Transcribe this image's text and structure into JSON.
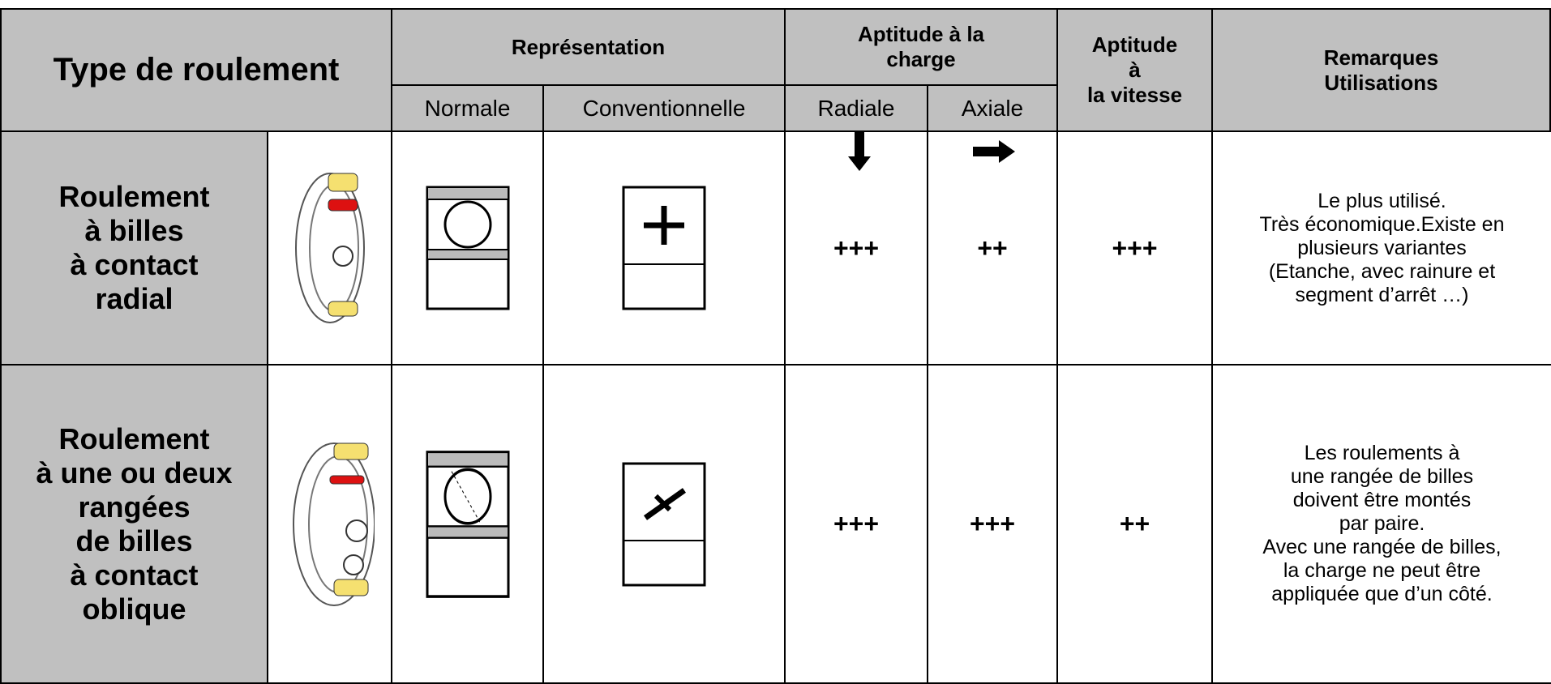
{
  "header": {
    "type": "Type  de roulement",
    "representation": "Représentation",
    "normale": "Normale",
    "conventionnelle": "Conventionnelle",
    "charge": [
      "Aptitude à la",
      "charge"
    ],
    "radiale": "Radiale",
    "axiale": "Axiale",
    "vitesse": [
      "Aptitude",
      "à",
      "la vitesse"
    ],
    "remarques": [
      "Remarques",
      "Utilisations"
    ]
  },
  "rows": [
    {
      "name": [
        "Roulement",
        "à billes",
        "à contact",
        "radial"
      ],
      "radiale": "+++",
      "axiale": "++",
      "vitesse": "+++",
      "remarques": [
        "Le plus utilisé.",
        "Très économique.Existe en",
        "plusieurs variantes",
        "(Etanche, avec rainure et",
        "segment d’arrêt …)"
      ]
    },
    {
      "name": [
        "Roulement",
        "à une ou deux",
        "rangées",
        "de billes",
        "à contact",
        "oblique"
      ],
      "radiale": "+++",
      "axiale": "+++",
      "vitesse": "++",
      "remarques": [
        "Les roulements à",
        "une rangée de billes",
        "doivent être montés",
        "par paire.",
        "Avec une rangée de billes,",
        "la charge ne peut être",
        "appliquée que d’un côté."
      ]
    }
  ]
}
